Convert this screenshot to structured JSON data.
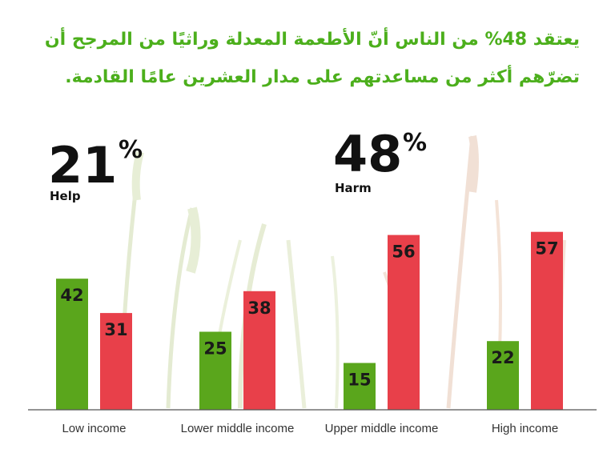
{
  "title": "يعتقد 48% من الناس أنّ الأطعمة المعدلة وراثيًا من المرجح أن تضرّهم أكثر من مساعدتهم على مدار العشرين عامًا القادمة.",
  "summary": [
    {
      "value": "21",
      "unit": "%",
      "label": "Help"
    },
    {
      "value": "48",
      "unit": "%",
      "label": "Harm"
    }
  ],
  "colors": {
    "help": "#5aa61c",
    "harm": "#e8404a",
    "title": "#4caf1c",
    "background_plants": "#e9ede0"
  },
  "chart_data": {
    "type": "bar",
    "categories": [
      "Low income",
      "Lower middle income",
      "Upper middle income",
      "High income"
    ],
    "series": [
      {
        "name": "Help",
        "values": [
          42,
          25,
          15,
          22
        ]
      },
      {
        "name": "Harm",
        "values": [
          31,
          38,
          56,
          57
        ]
      }
    ],
    "ylim": [
      0,
      70
    ],
    "grid": false,
    "legend": "none"
  }
}
